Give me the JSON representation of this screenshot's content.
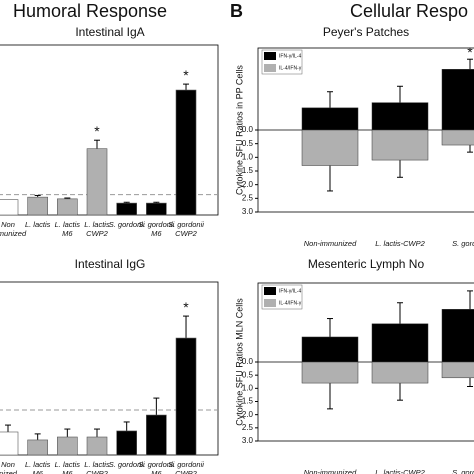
{
  "header": {
    "left": "Humoral Response",
    "panel": "B",
    "right": "Cellular Respo"
  },
  "chart_data": [
    {
      "type": "bar",
      "title": "Intestinal IgA",
      "categories": [
        [
          "Non",
          "immunized"
        ],
        [
          "L. lactis"
        ],
        [
          "L. lactis",
          "M6"
        ],
        [
          "L. lactis",
          "CWP2"
        ],
        [
          "S. gordonii"
        ],
        [
          "S. gordonii",
          "M6"
        ],
        [
          "S. gordonii",
          "CWP2"
        ]
      ],
      "values": [
        0.9,
        1.05,
        0.95,
        3.9,
        0.7,
        0.7,
        7.35
      ],
      "errors": [
        0,
        0.1,
        0.05,
        0.5,
        0.05,
        0.05,
        0.35
      ],
      "colors": [
        "#ffffff",
        "#b0b0b0",
        "#b0b0b0",
        "#b0b0b0",
        "#000000",
        "#000000",
        "#000000"
      ],
      "ref_line": 1.2,
      "ylim": [
        0,
        10
      ],
      "annotations": [
        {
          "index": 3,
          "text": "*"
        },
        {
          "index": 6,
          "text": "*"
        }
      ]
    },
    {
      "type": "diverging_bar",
      "title": "Peyer's Patches",
      "ylabel": "Cytokine SFU Ratios in PP Cells",
      "categories": [
        "Non-immunized",
        "L. lactis-CWP2",
        "S. gordonii"
      ],
      "series": [
        {
          "name": "IFN-γ/IL-4",
          "color": "#000000",
          "values": [
            0.81,
            1.0,
            2.22
          ],
          "errors": [
            0.59,
            0.6,
            0.37
          ]
        },
        {
          "name": "IL-4/IFN-γ",
          "color": "#b0b0b0",
          "values": [
            -1.3,
            -1.1,
            -0.55
          ],
          "errors": [
            0.93,
            0.63,
            0.26
          ]
        }
      ],
      "ylim": [
        -3,
        3
      ],
      "yticks": [
        {
          "value": 0,
          "label": "0.0"
        },
        {
          "value": -0.5,
          "label": "0.5"
        },
        {
          "value": -1,
          "label": "1.0"
        },
        {
          "value": -1.5,
          "label": "1.5"
        },
        {
          "value": -2,
          "label": "2.0"
        },
        {
          "value": -2.5,
          "label": "2.5"
        },
        {
          "value": -3,
          "label": "3.0"
        }
      ],
      "annotations": [
        {
          "index": 2,
          "text": "*"
        }
      ]
    },
    {
      "type": "bar",
      "title": "Intestinal IgG",
      "categories": [
        [
          "Non",
          "nized"
        ],
        [
          "L. lactis",
          "M6"
        ],
        [
          "L. lactis",
          "M6"
        ],
        [
          "L. lactis",
          "CWP2"
        ],
        [
          "S. gordonii"
        ],
        [
          "S. gordonii",
          "M6"
        ],
        [
          "S. gordonii",
          "CWP2"
        ]
      ],
      "values": [
        1.33,
        0.87,
        1.04,
        1.04,
        1.39,
        2.31,
        6.76
      ],
      "errors": [
        0.4,
        0.35,
        0.46,
        0.46,
        0.52,
        0.98,
        1.27
      ],
      "colors": [
        "#ffffff",
        "#b0b0b0",
        "#b0b0b0",
        "#b0b0b0",
        "#000000",
        "#000000",
        "#000000"
      ],
      "ref_line": 2.6,
      "ylim": [
        0,
        10
      ],
      "annotations": [
        {
          "index": 6,
          "text": "*"
        }
      ]
    },
    {
      "type": "diverging_bar",
      "title": "Mesenteric Lymph No",
      "ylabel": "Cytokine SFU Ratios MLN Cells",
      "categories": [
        "Non-immunized",
        "L. lactis-CWP2",
        "S. gordonii"
      ],
      "series": [
        {
          "name": "IFN-γ/IL-4",
          "color": "#000000",
          "values": [
            0.95,
            1.45,
            2.0
          ],
          "errors": [
            0.7,
            0.8,
            0.7
          ]
        },
        {
          "name": "IL-4/IFN-γ",
          "color": "#b0b0b0",
          "values": [
            -0.8,
            -0.8,
            -0.6
          ],
          "errors": [
            0.98,
            0.65,
            0.33
          ]
        }
      ],
      "ylim": [
        -3,
        3
      ],
      "yticks": [
        {
          "value": 0,
          "label": "0.0"
        },
        {
          "value": -0.5,
          "label": "0.5"
        },
        {
          "value": -1,
          "label": "1.0"
        },
        {
          "value": -1.5,
          "label": "1.5"
        },
        {
          "value": -2,
          "label": "2.0"
        },
        {
          "value": -2.5,
          "label": "2.5"
        },
        {
          "value": -3,
          "label": "3.0"
        }
      ]
    }
  ]
}
